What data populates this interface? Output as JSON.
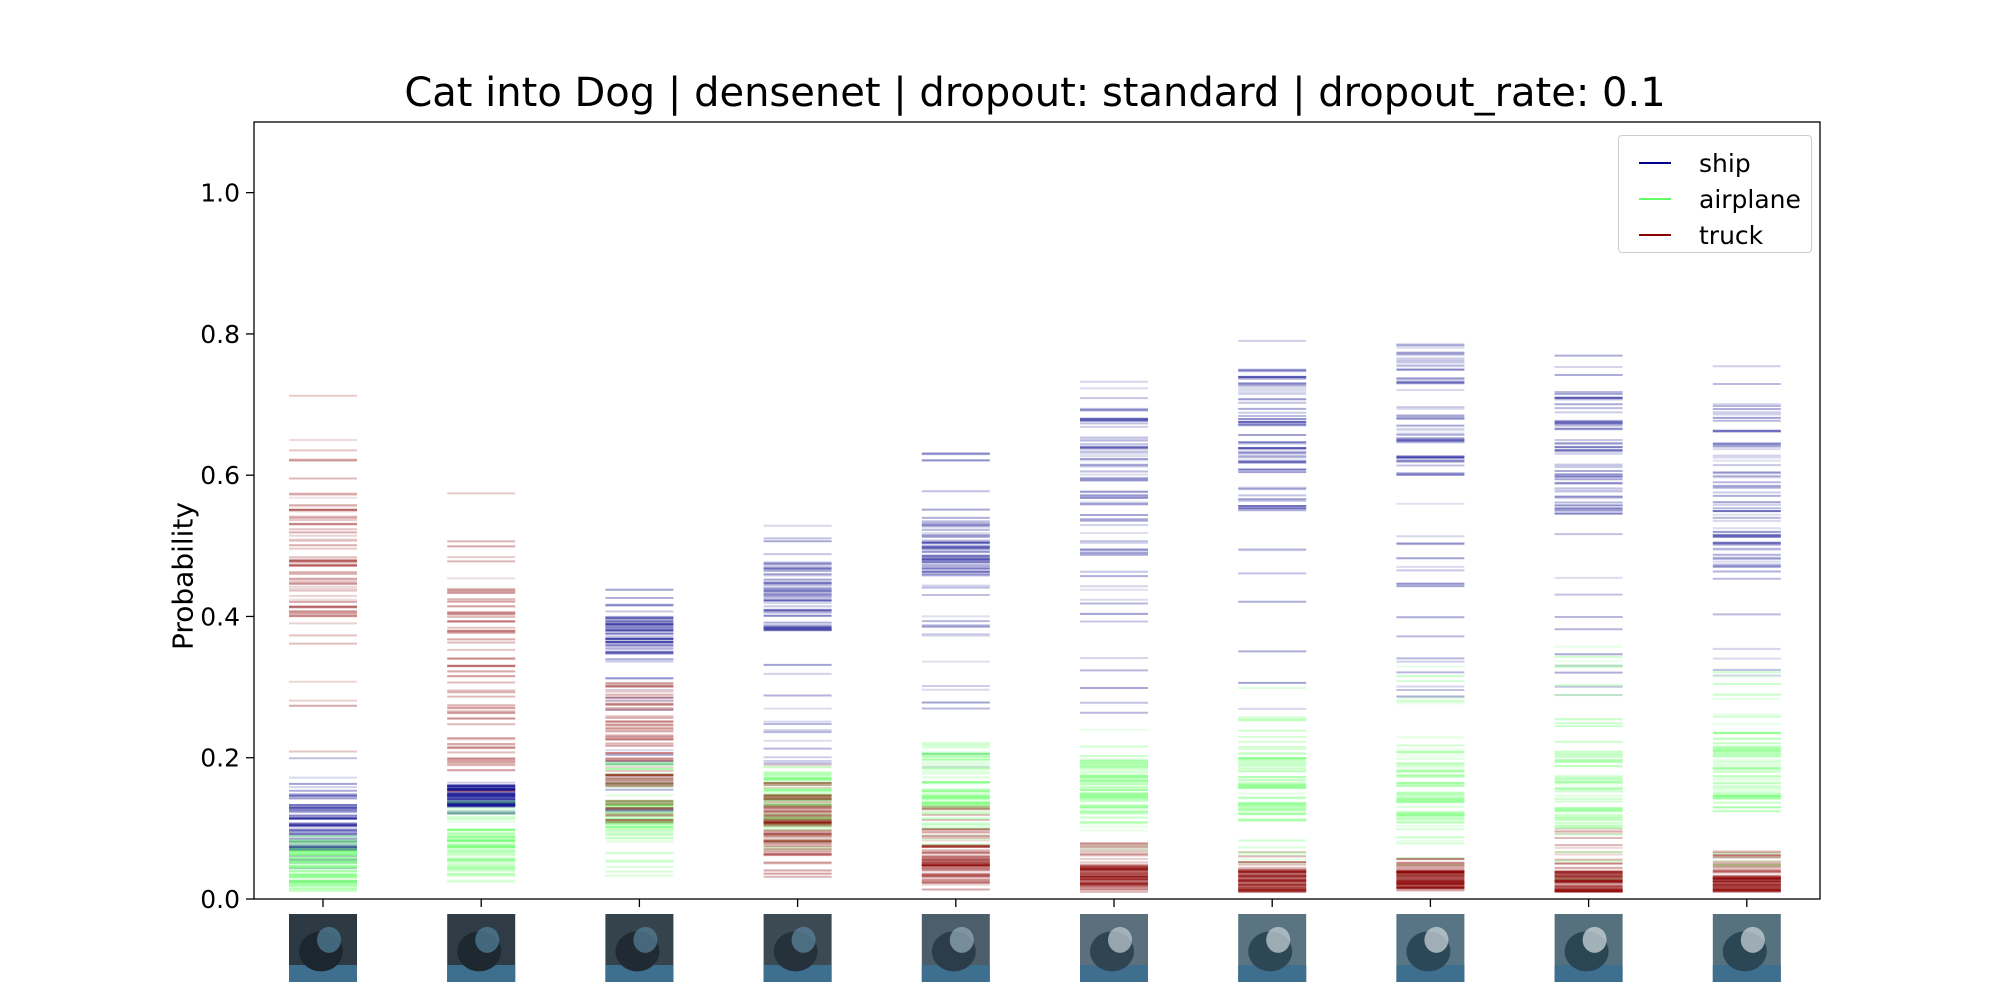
{
  "chart_data": {
    "type": "line",
    "title": "Cat into Dog | densenet | dropout: standard | dropout_rate: 0.1",
    "xlabel": "",
    "ylabel": "Probability",
    "ylim": [
      0,
      1.1
    ],
    "yticks": [
      "0.0",
      "0.2",
      "0.4",
      "0.6",
      "0.8",
      "1.0"
    ],
    "x_positions": 10,
    "x_tick_images": [
      "cat image",
      "cat image",
      "cat image",
      "cat-dog blend image",
      "cat-dog blend image",
      "dog image",
      "dog image",
      "dog image",
      "dog image",
      "dog image"
    ],
    "legend_position": "top-right",
    "grid": false,
    "series": [
      {
        "name": "ship",
        "color": "#00008b",
        "ranges": [
          [
            0.02,
            0.2
          ],
          [
            0.12,
            0.17
          ],
          [
            0.12,
            0.45
          ],
          [
            0.17,
            0.57
          ],
          [
            0.18,
            0.65
          ],
          [
            0.26,
            0.76
          ],
          [
            0.26,
            0.8
          ],
          [
            0.28,
            0.81
          ],
          [
            0.28,
            0.78
          ],
          [
            0.3,
            0.76
          ]
        ],
        "dense": [
          [
            0.06,
            0.16
          ],
          [
            0.13,
            0.16
          ],
          [
            0.34,
            0.4
          ],
          [
            0.38,
            0.48
          ],
          [
            0.44,
            0.54
          ],
          [
            0.48,
            0.7
          ],
          [
            0.55,
            0.75
          ],
          [
            0.6,
            0.78
          ],
          [
            0.55,
            0.72
          ],
          [
            0.45,
            0.7
          ]
        ]
      },
      {
        "name": "airplane",
        "color": "#66ff66",
        "ranges": [
          [
            0.01,
            0.09
          ],
          [
            0.01,
            0.14
          ],
          [
            0.03,
            0.2
          ],
          [
            0.07,
            0.19
          ],
          [
            0.07,
            0.23
          ],
          [
            0.06,
            0.24
          ],
          [
            0.05,
            0.3
          ],
          [
            0.03,
            0.33
          ],
          [
            0.02,
            0.36
          ],
          [
            0.04,
            0.34
          ]
        ],
        "dense": [
          [
            0.02,
            0.07
          ],
          [
            0.04,
            0.1
          ],
          [
            0.08,
            0.14
          ],
          [
            0.1,
            0.18
          ],
          [
            0.12,
            0.21
          ],
          [
            0.12,
            0.2
          ],
          [
            0.11,
            0.2
          ],
          [
            0.1,
            0.22
          ],
          [
            0.1,
            0.21
          ],
          [
            0.12,
            0.25
          ]
        ]
      },
      {
        "name": "truck",
        "color": "#8b0000",
        "ranges": [
          [
            0.17,
            0.72
          ],
          [
            0.15,
            0.63
          ],
          [
            0.1,
            0.31
          ],
          [
            0.03,
            0.2
          ],
          [
            0.01,
            0.14
          ],
          [
            0.01,
            0.08
          ],
          [
            0.01,
            0.08
          ],
          [
            0.01,
            0.06
          ],
          [
            0.01,
            0.1
          ],
          [
            0.01,
            0.07
          ]
        ],
        "dense": [
          [
            0.4,
            0.56
          ],
          [
            0.18,
            0.44
          ],
          [
            0.12,
            0.31
          ],
          [
            0.06,
            0.15
          ],
          [
            0.02,
            0.08
          ],
          [
            0.01,
            0.05
          ],
          [
            0.01,
            0.04
          ],
          [
            0.01,
            0.04
          ],
          [
            0.01,
            0.04
          ],
          [
            0.01,
            0.03
          ]
        ]
      }
    ]
  }
}
